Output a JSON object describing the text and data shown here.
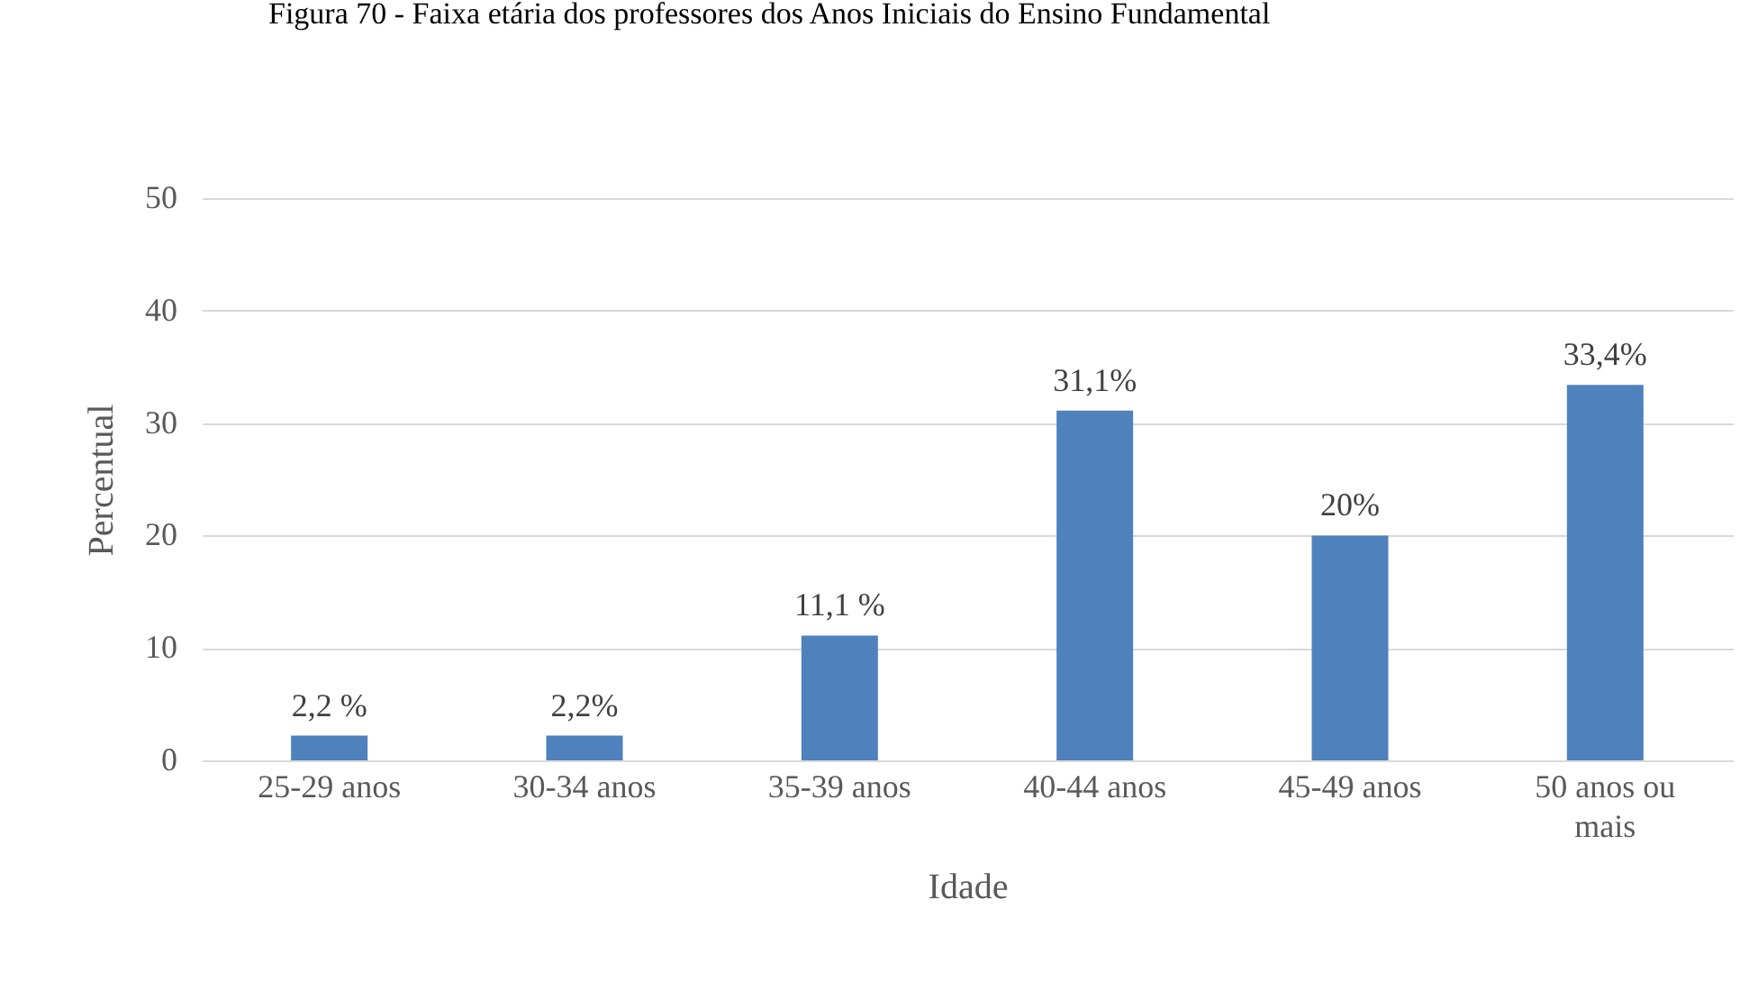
{
  "chart_data": {
    "type": "bar",
    "title": "Figura 70 - Faixa etária dos professores dos Anos Iniciais do Ensino Fundamental",
    "xlabel": "Idade",
    "ylabel": "Percentual",
    "categories": [
      "25-29 anos",
      "30-34 anos",
      "35-39 anos",
      "40-44 anos",
      "45-49 anos",
      "50 anos ou mais"
    ],
    "values": [
      2.2,
      2.2,
      11.1,
      31.1,
      20,
      33.4
    ],
    "value_labels": [
      "2,2 %",
      "2,2%",
      "11,1 %",
      "31,1%",
      "20%",
      "33,4%"
    ],
    "color": "#4f81bd",
    "ylim": [
      0,
      50
    ],
    "yticks": [
      0,
      10,
      20,
      30,
      40,
      50
    ],
    "grid": "y"
  }
}
